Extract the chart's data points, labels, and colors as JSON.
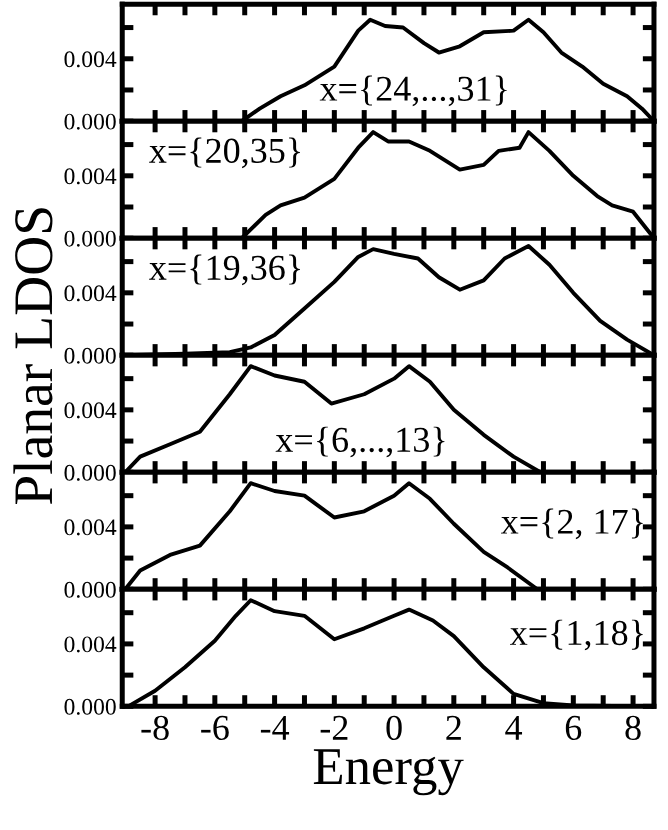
{
  "chart_data": [
    {
      "type": "line",
      "color": "#000000",
      "annotations": [
        "x={24,...,31}"
      ],
      "tick_labels": "y",
      "xlim": [
        -9.1,
        8.7
      ],
      "ylim": [
        0,
        0.0075
      ],
      "xticks": [
        {
          "value": -8,
          "label": null
        },
        {
          "value": -7,
          "label": null
        },
        {
          "value": -6,
          "label": null
        },
        {
          "value": -5,
          "label": null
        },
        {
          "value": -4,
          "label": null
        },
        {
          "value": -3,
          "label": null
        },
        {
          "value": -2,
          "label": null
        },
        {
          "value": -1,
          "label": null
        },
        {
          "value": 0,
          "label": null
        },
        {
          "value": 1,
          "label": null
        },
        {
          "value": 2,
          "label": null
        },
        {
          "value": 3,
          "label": null
        },
        {
          "value": 4,
          "label": null
        },
        {
          "value": 5,
          "label": null
        },
        {
          "value": 6,
          "label": null
        },
        {
          "value": 7,
          "label": null
        },
        {
          "value": 8,
          "label": null
        }
      ],
      "yticks": [
        {
          "value": 0,
          "label": "0.000"
        },
        {
          "value": 0.002,
          "label": null
        },
        {
          "value": 0.004,
          "label": "0.004"
        },
        {
          "value": 0.006,
          "label": null
        }
      ],
      "x": [
        -5.1,
        -4.5,
        -3.8,
        -3,
        -2,
        -1.2,
        -0.8,
        -0.3,
        0.3,
        1,
        1.5,
        2.2,
        3,
        4,
        4.5,
        5,
        5.6,
        6.3,
        7,
        7.8,
        8.3,
        8.7
      ],
      "values": [
        0,
        0.0008,
        0.0016,
        0.0023,
        0.0035,
        0.0058,
        0.0065,
        0.0061,
        0.006,
        0.005,
        0.0044,
        0.0048,
        0.0057,
        0.0058,
        0.0065,
        0.0057,
        0.0044,
        0.0035,
        0.0024,
        0.0016,
        0.0008,
        0
      ]
    },
    {
      "type": "line",
      "color": "#000000",
      "annotations": [
        "x={20,35}"
      ],
      "tick_labels": "y",
      "xlim": [
        -9.1,
        8.7
      ],
      "ylim": [
        0,
        0.0075
      ],
      "xticks": [
        {
          "value": -8,
          "label": null
        },
        {
          "value": -7,
          "label": null
        },
        {
          "value": -6,
          "label": null
        },
        {
          "value": -5,
          "label": null
        },
        {
          "value": -4,
          "label": null
        },
        {
          "value": -3,
          "label": null
        },
        {
          "value": -2,
          "label": null
        },
        {
          "value": -1,
          "label": null
        },
        {
          "value": 0,
          "label": null
        },
        {
          "value": 1,
          "label": null
        },
        {
          "value": 2,
          "label": null
        },
        {
          "value": 3,
          "label": null
        },
        {
          "value": 4,
          "label": null
        },
        {
          "value": 5,
          "label": null
        },
        {
          "value": 6,
          "label": null
        },
        {
          "value": 7,
          "label": null
        },
        {
          "value": 8,
          "label": null
        }
      ],
      "yticks": [
        {
          "value": 0,
          "label": "0.000"
        },
        {
          "value": 0.002,
          "label": null
        },
        {
          "value": 0.004,
          "label": "0.004"
        },
        {
          "value": 0.006,
          "label": null
        }
      ],
      "x": [
        -5.1,
        -4.3,
        -3.8,
        -3,
        -2,
        -1.2,
        -0.7,
        -0.2,
        0.5,
        1.2,
        2.2,
        3,
        3.5,
        4.2,
        4.5,
        5.2,
        6,
        6.8,
        7.3,
        8,
        8.7
      ],
      "values": [
        0,
        0.0015,
        0.0021,
        0.0026,
        0.0038,
        0.0058,
        0.0068,
        0.0062,
        0.0062,
        0.0056,
        0.0044,
        0.0047,
        0.0056,
        0.0058,
        0.0068,
        0.0056,
        0.004,
        0.0027,
        0.0021,
        0.0017,
        0
      ]
    },
    {
      "type": "line",
      "color": "#000000",
      "annotations": [
        "x={19,36}"
      ],
      "tick_labels": "y",
      "ylabel": "Planar LDOS",
      "xlim": [
        -9.1,
        8.7
      ],
      "ylim": [
        0,
        0.0075
      ],
      "xticks": [
        {
          "value": -8,
          "label": null
        },
        {
          "value": -7,
          "label": null
        },
        {
          "value": -6,
          "label": null
        },
        {
          "value": -5,
          "label": null
        },
        {
          "value": -4,
          "label": null
        },
        {
          "value": -3,
          "label": null
        },
        {
          "value": -2,
          "label": null
        },
        {
          "value": -1,
          "label": null
        },
        {
          "value": 0,
          "label": null
        },
        {
          "value": 1,
          "label": null
        },
        {
          "value": 2,
          "label": null
        },
        {
          "value": 3,
          "label": null
        },
        {
          "value": 4,
          "label": null
        },
        {
          "value": 5,
          "label": null
        },
        {
          "value": 6,
          "label": null
        },
        {
          "value": 7,
          "label": null
        },
        {
          "value": 8,
          "label": null
        }
      ],
      "yticks": [
        {
          "value": 0,
          "label": "0.000"
        },
        {
          "value": 0.002,
          "label": null
        },
        {
          "value": 0.004,
          "label": "0.004"
        },
        {
          "value": 0.006,
          "label": null
        }
      ],
      "x": [
        -9,
        -7,
        -5.5,
        -4.8,
        -4,
        -3,
        -2,
        -1.2,
        -0.7,
        0,
        0.8,
        1.5,
        2.2,
        3,
        3.7,
        4.5,
        5.2,
        6,
        6.9,
        7.8,
        8.7
      ],
      "values": [
        0,
        0.0001,
        0.0002,
        0.0005,
        0.0013,
        0.003,
        0.0047,
        0.0063,
        0.0068,
        0.0065,
        0.0062,
        0.005,
        0.0042,
        0.0048,
        0.0062,
        0.007,
        0.0058,
        0.004,
        0.0022,
        0.001,
        0
      ]
    },
    {
      "type": "line",
      "color": "#000000",
      "annotations": [
        "x={6,...,13}"
      ],
      "tick_labels": "y",
      "xlim": [
        -9.1,
        8.7
      ],
      "ylim": [
        0,
        0.0075
      ],
      "xticks": [
        {
          "value": -8,
          "label": null
        },
        {
          "value": -7,
          "label": null
        },
        {
          "value": -6,
          "label": null
        },
        {
          "value": -5,
          "label": null
        },
        {
          "value": -4,
          "label": null
        },
        {
          "value": -3,
          "label": null
        },
        {
          "value": -2,
          "label": null
        },
        {
          "value": -1,
          "label": null
        },
        {
          "value": 0,
          "label": null
        },
        {
          "value": 1,
          "label": null
        },
        {
          "value": 2,
          "label": null
        },
        {
          "value": 3,
          "label": null
        },
        {
          "value": 4,
          "label": null
        },
        {
          "value": 5,
          "label": null
        },
        {
          "value": 6,
          "label": null
        },
        {
          "value": 7,
          "label": null
        },
        {
          "value": 8,
          "label": null
        }
      ],
      "yticks": [
        {
          "value": 0,
          "label": "0.000"
        },
        {
          "value": 0.002,
          "label": null
        },
        {
          "value": 0.004,
          "label": "0.004"
        },
        {
          "value": 0.006,
          "label": null
        }
      ],
      "x": [
        -9,
        -8.5,
        -7.5,
        -6.5,
        -5.5,
        -4.8,
        -4,
        -3,
        -2.1,
        -1,
        0,
        0.5,
        1.2,
        2,
        3,
        4,
        4.9
      ],
      "values": [
        0,
        0.001,
        0.0018,
        0.0026,
        0.005,
        0.0068,
        0.0062,
        0.0058,
        0.0044,
        0.005,
        0.006,
        0.0068,
        0.0058,
        0.004,
        0.0024,
        0.001,
        0
      ]
    },
    {
      "type": "line",
      "color": "#000000",
      "annotations": [
        "x={2, 17}"
      ],
      "tick_labels": "y",
      "xlim": [
        -9.1,
        8.7
      ],
      "ylim": [
        0,
        0.0075
      ],
      "xticks": [
        {
          "value": -8,
          "label": null
        },
        {
          "value": -7,
          "label": null
        },
        {
          "value": -6,
          "label": null
        },
        {
          "value": -5,
          "label": null
        },
        {
          "value": -4,
          "label": null
        },
        {
          "value": -3,
          "label": null
        },
        {
          "value": -2,
          "label": null
        },
        {
          "value": -1,
          "label": null
        },
        {
          "value": 0,
          "label": null
        },
        {
          "value": 1,
          "label": null
        },
        {
          "value": 2,
          "label": null
        },
        {
          "value": 3,
          "label": null
        },
        {
          "value": 4,
          "label": null
        },
        {
          "value": 5,
          "label": null
        },
        {
          "value": 6,
          "label": null
        },
        {
          "value": 7,
          "label": null
        },
        {
          "value": 8,
          "label": null
        }
      ],
      "yticks": [
        {
          "value": 0,
          "label": "0.000"
        },
        {
          "value": 0.002,
          "label": null
        },
        {
          "value": 0.004,
          "label": "0.004"
        },
        {
          "value": 0.006,
          "label": null
        }
      ],
      "x": [
        -9,
        -8.5,
        -7.5,
        -6.5,
        -5.5,
        -4.8,
        -4,
        -3,
        -2,
        -1,
        0,
        0.5,
        1.2,
        2,
        3,
        3.8,
        4.8
      ],
      "values": [
        0,
        0.0012,
        0.0022,
        0.0028,
        0.005,
        0.0068,
        0.0063,
        0.006,
        0.0046,
        0.005,
        0.006,
        0.0068,
        0.0058,
        0.0042,
        0.0024,
        0.0014,
        0
      ]
    },
    {
      "type": "line",
      "color": "#000000",
      "annotations": [
        "x={1,18}"
      ],
      "xlabel": "Energy",
      "xlim": [
        -9.1,
        8.7
      ],
      "ylim": [
        0,
        0.0075
      ],
      "xticks": [
        -8,
        {
          "value": -7,
          "label": null
        },
        -6,
        {
          "value": -5,
          "label": null
        },
        -4,
        {
          "value": -3,
          "label": null
        },
        -2,
        {
          "value": -1,
          "label": null
        },
        0,
        {
          "value": 1,
          "label": null
        },
        2,
        {
          "value": 3,
          "label": null
        },
        4,
        {
          "value": 5,
          "label": null
        },
        6,
        {
          "value": 7,
          "label": null
        },
        8
      ],
      "yticks": [
        {
          "value": 0,
          "label": "0.000"
        },
        {
          "value": 0.002,
          "label": null
        },
        {
          "value": 0.004,
          "label": "0.004"
        },
        {
          "value": 0.006,
          "label": null
        }
      ],
      "x": [
        -8.9,
        -8,
        -7,
        -6,
        -5.3,
        -4.8,
        -4,
        -3,
        -2,
        -1,
        0,
        0.5,
        1.3,
        2,
        3,
        4,
        5,
        6,
        8.7
      ],
      "values": [
        0,
        0.001,
        0.0025,
        0.0042,
        0.0058,
        0.0068,
        0.0061,
        0.0058,
        0.0043,
        0.005,
        0.0058,
        0.0062,
        0.0055,
        0.0045,
        0.0025,
        0.0008,
        0.0002,
        5e-05,
        0
      ]
    }
  ]
}
